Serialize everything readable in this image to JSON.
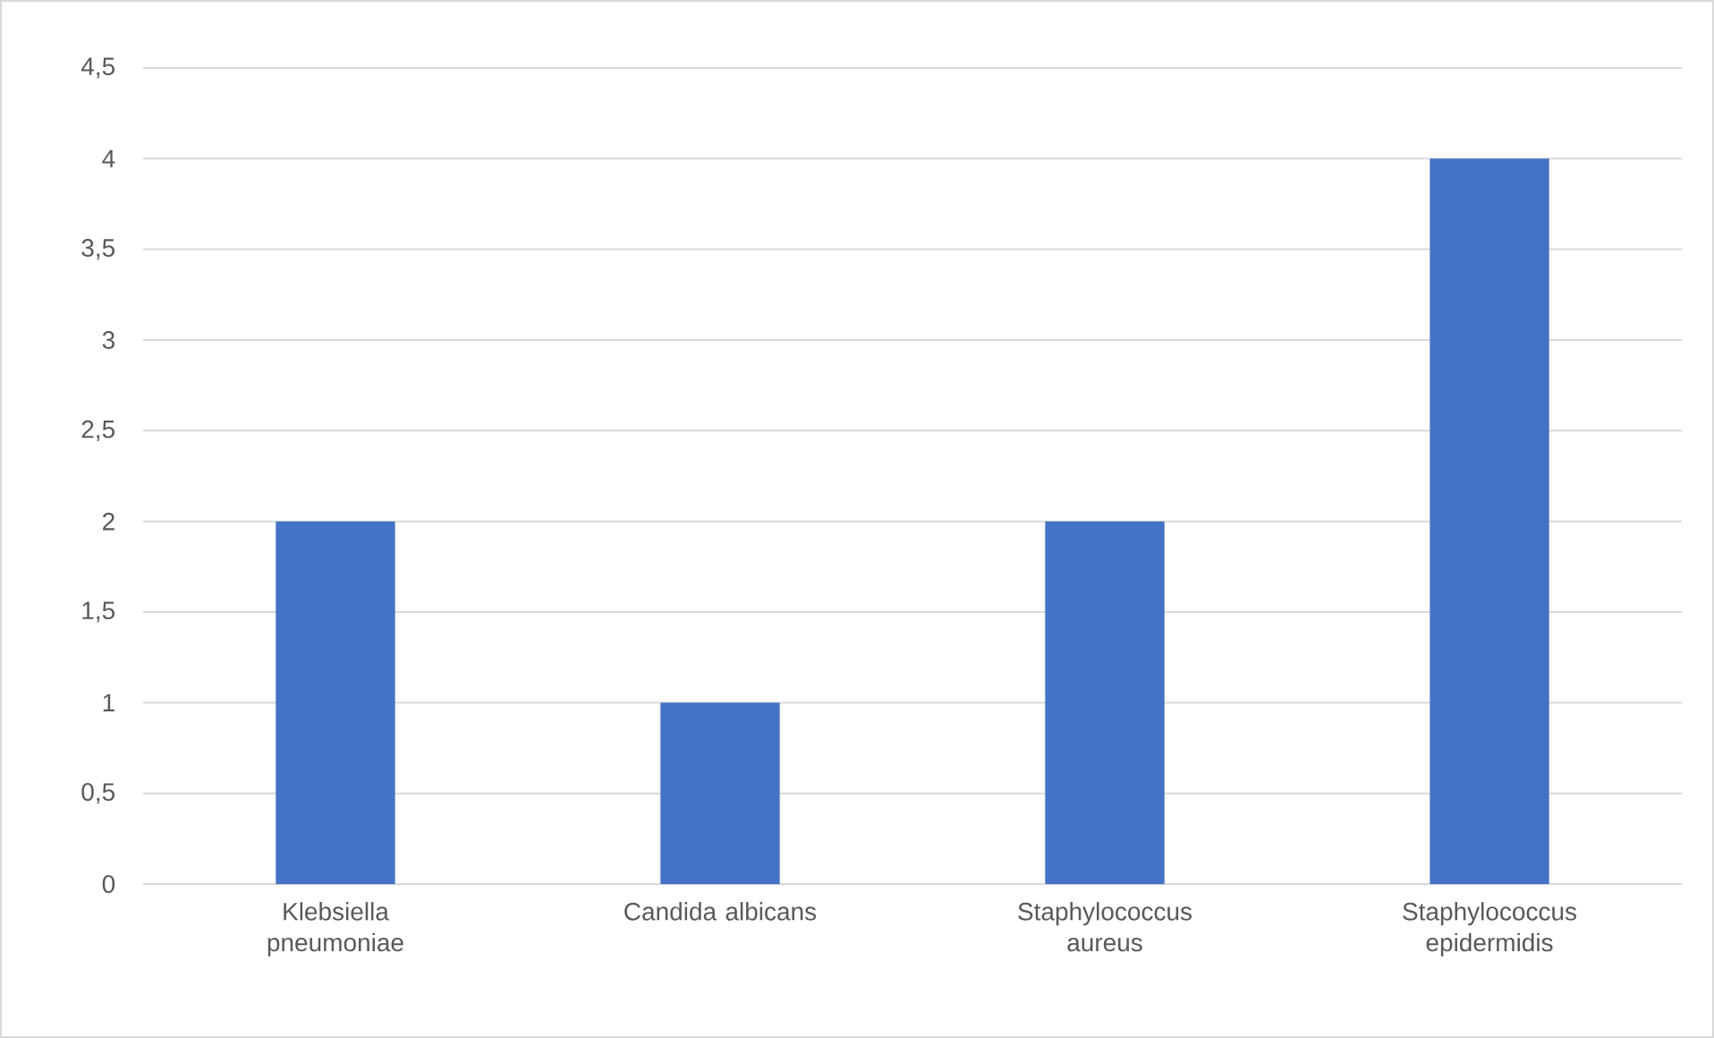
{
  "chart_data": {
    "type": "bar",
    "categories": [
      "Klebsiella pneumoniae",
      "Candida albicans",
      "Staphylococcus aureus",
      "Staphylococcus epidermidis"
    ],
    "values": [
      2,
      1,
      2,
      4
    ],
    "color": "#4472c4",
    "ylim": [
      0,
      4.5
    ],
    "yticks": [
      0,
      {
        "value": 0.5,
        "label": "0,5"
      },
      1,
      {
        "value": 1.5,
        "label": "1,5"
      },
      2,
      {
        "value": 2.5,
        "label": "2,5"
      },
      3,
      {
        "value": 3.5,
        "label": "3,5"
      },
      4,
      {
        "value": 4.5,
        "label": "4,5"
      }
    ],
    "grid": "y"
  }
}
